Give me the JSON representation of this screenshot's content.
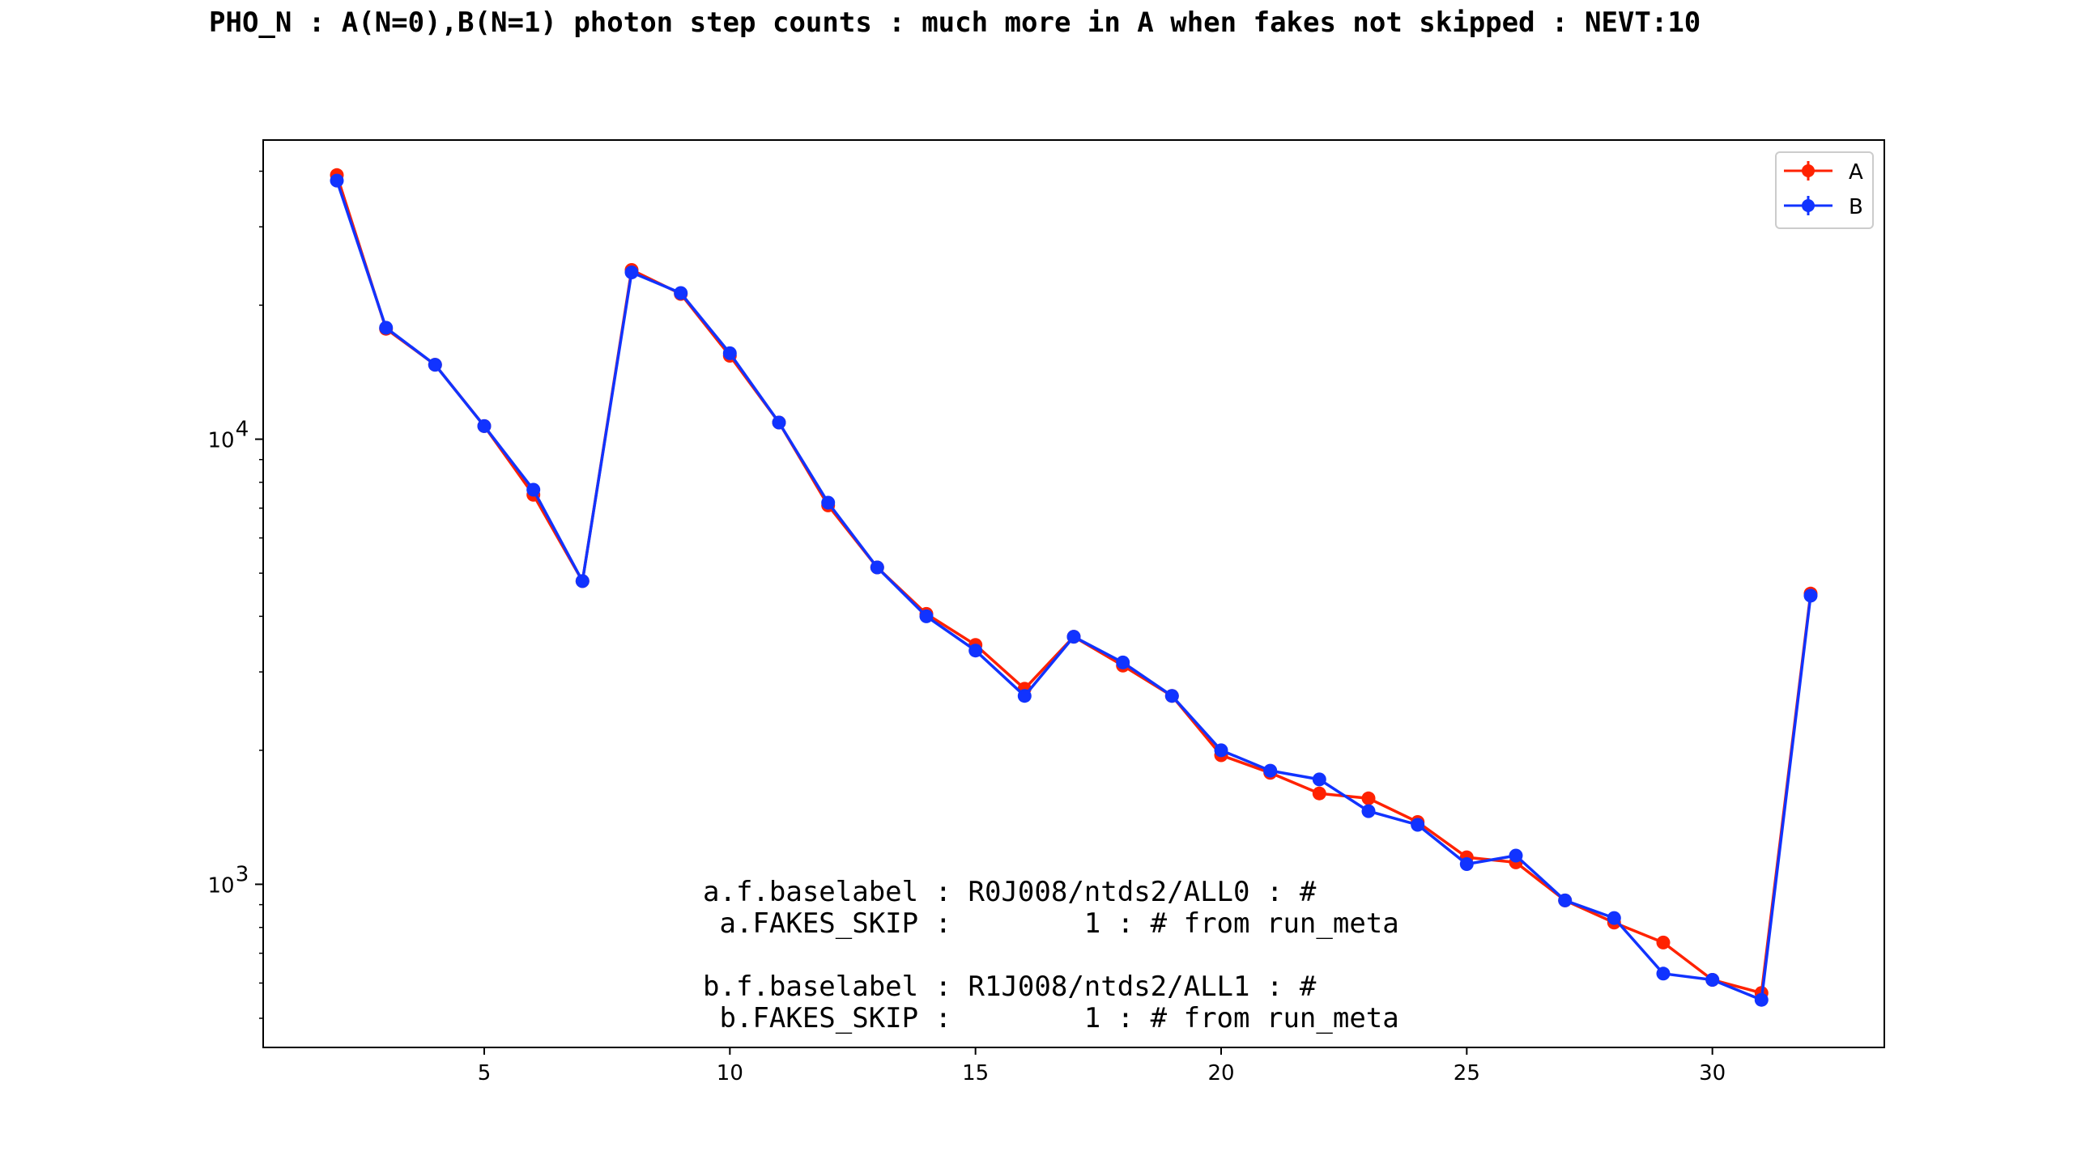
{
  "chart_data": {
    "type": "line",
    "title": "PHO_N : A(N=0),B(N=1) photon step counts : much more in A when fakes not skipped : NEVT:10",
    "xlabel": "",
    "ylabel": "",
    "yscale": "log",
    "xlim": [
      0.5,
      33.5
    ],
    "ylim": [
      430,
      47000
    ],
    "xticks": [
      5,
      10,
      15,
      20,
      25,
      30
    ],
    "yticks": [
      {
        "value": 1000,
        "base": "10",
        "exp": "3"
      },
      {
        "value": 10000,
        "base": "10",
        "exp": "4"
      }
    ],
    "grid": false,
    "legend_position": "top-right",
    "x": [
      2,
      3,
      4,
      5,
      6,
      7,
      8,
      9,
      10,
      11,
      12,
      13,
      14,
      15,
      16,
      17,
      18,
      19,
      20,
      21,
      22,
      23,
      24,
      25,
      26,
      27,
      28,
      29,
      30,
      31,
      32
    ],
    "series": [
      {
        "name": "A",
        "color": "#ff2200",
        "values": [
          39200,
          17700,
          14700,
          10700,
          7500,
          4800,
          24000,
          21200,
          15400,
          10900,
          7100,
          5150,
          4050,
          3450,
          2750,
          3600,
          3100,
          2650,
          1950,
          1780,
          1600,
          1560,
          1380,
          1150,
          1120,
          920,
          820,
          740,
          610,
          570,
          4500
        ]
      },
      {
        "name": "B",
        "color": "#1133ff",
        "values": [
          38100,
          17800,
          14700,
          10700,
          7700,
          4800,
          23700,
          21300,
          15600,
          10900,
          7200,
          5150,
          4000,
          3350,
          2650,
          3600,
          3150,
          2650,
          2000,
          1800,
          1720,
          1460,
          1360,
          1110,
          1160,
          920,
          840,
          630,
          610,
          550,
          4450
        ]
      }
    ],
    "annotations": [
      "a.f.baselabel : R0J008/ntds2/ALL0 : #",
      " a.FAKES_SKIP :        1 : # from run_meta",
      "b.f.baselabel : R1J008/ntds2/ALL1 : #",
      " b.FAKES_SKIP :        1 : # from run_meta"
    ]
  }
}
